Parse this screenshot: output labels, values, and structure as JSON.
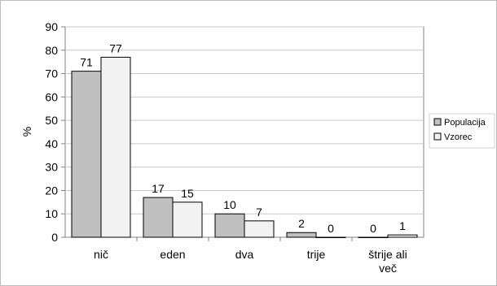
{
  "chart_data": {
    "type": "bar",
    "title": "",
    "xlabel": "",
    "ylabel": "%",
    "ylim": [
      0,
      90
    ],
    "yticks": [
      0,
      10,
      20,
      30,
      40,
      50,
      60,
      70,
      80,
      90
    ],
    "grid": true,
    "legend_position": "right",
    "categories": [
      [
        "nič"
      ],
      [
        "eden"
      ],
      [
        "dva"
      ],
      [
        "trije"
      ],
      [
        "štrije ali",
        "več"
      ]
    ],
    "series": [
      {
        "name": "Populacija",
        "color": "#c0c0c0",
        "values": [
          71,
          17,
          10,
          2,
          0
        ]
      },
      {
        "name": "Vzorec",
        "color": "#f2f2f2",
        "values": [
          77,
          15,
          7,
          0,
          1
        ]
      }
    ]
  }
}
